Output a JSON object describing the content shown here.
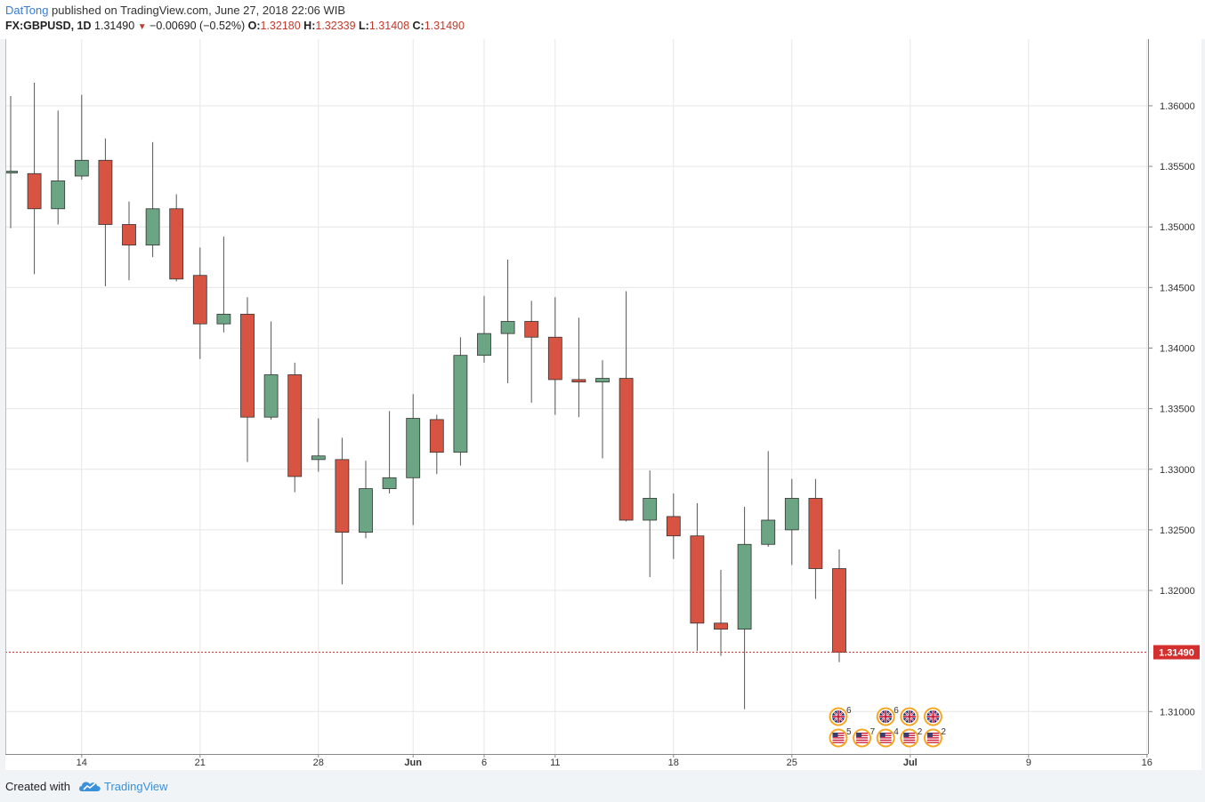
{
  "header": {
    "author": "DatTong",
    "published": " published on TradingView.com, June 27, 2018 22:06 WIB",
    "symbol": "FX:GBPUSD, 1D",
    "last": "1.31490",
    "change_arrow": "▼",
    "change": "−0.00690 (−0.52%)",
    "o_label": "O:",
    "o_value": "1.32180",
    "h_label": "H:",
    "h_value": "1.32339",
    "l_label": "L:",
    "l_value": "1.31408",
    "c_label": "C:",
    "c_value": "1.31490"
  },
  "footer": {
    "created_with": "Created with",
    "brand": "TradingView"
  },
  "colors": {
    "up": "#6ba583",
    "down": "#d75442",
    "wick": "#555555",
    "grid": "#e6e6e6",
    "price_line": "#d32f2f",
    "last_label_bg": "#d32f2f"
  },
  "chart_data": {
    "type": "candlestick",
    "symbol": "FX:GBPUSD",
    "interval": "1D",
    "ylim": [
      1.3065,
      1.3655
    ],
    "y_ticks": [
      "1.36000",
      "1.35500",
      "1.35000",
      "1.34500",
      "1.34000",
      "1.33500",
      "1.33000",
      "1.32500",
      "1.32000",
      "1.31000"
    ],
    "y_tick_values": [
      1.36,
      1.355,
      1.35,
      1.345,
      1.34,
      1.335,
      1.33,
      1.325,
      1.32,
      1.31
    ],
    "x_ticks": [
      {
        "label": "14",
        "bar": 3,
        "bold": false
      },
      {
        "label": "21",
        "bar": 8,
        "bold": false
      },
      {
        "label": "28",
        "bar": 13,
        "bold": false
      },
      {
        "label": "Jun",
        "bar": 17,
        "bold": true
      },
      {
        "label": "6",
        "bar": 20,
        "bold": false
      },
      {
        "label": "11",
        "bar": 23,
        "bold": false
      },
      {
        "label": "18",
        "bar": 28,
        "bold": false
      },
      {
        "label": "25",
        "bar": 33,
        "bold": false
      },
      {
        "label": "Jul",
        "bar": 38,
        "bold": true
      },
      {
        "label": "9",
        "bar": 43,
        "bold": false
      },
      {
        "label": "16",
        "bar": 48,
        "bold": false
      }
    ],
    "last_price": 1.3149,
    "last_price_label": "1.31490",
    "candles": [
      {
        "o": 1.3545,
        "h": 1.3608,
        "l": 1.3499,
        "c": 1.3546
      },
      {
        "o": 1.3544,
        "h": 1.3619,
        "l": 1.3461,
        "c": 1.3515
      },
      {
        "o": 1.3515,
        "h": 1.3596,
        "l": 1.3502,
        "c": 1.3538
      },
      {
        "o": 1.3542,
        "h": 1.3609,
        "l": 1.3539,
        "c": 1.3555
      },
      {
        "o": 1.3555,
        "h": 1.3573,
        "l": 1.3451,
        "c": 1.3502
      },
      {
        "o": 1.3502,
        "h": 1.3521,
        "l": 1.3456,
        "c": 1.3485
      },
      {
        "o": 1.3485,
        "h": 1.357,
        "l": 1.3475,
        "c": 1.3515
      },
      {
        "o": 1.3515,
        "h": 1.3527,
        "l": 1.3455,
        "c": 1.3457
      },
      {
        "o": 1.346,
        "h": 1.3483,
        "l": 1.3391,
        "c": 1.342
      },
      {
        "o": 1.342,
        "h": 1.3492,
        "l": 1.3413,
        "c": 1.3428
      },
      {
        "o": 1.3428,
        "h": 1.3442,
        "l": 1.3306,
        "c": 1.3343
      },
      {
        "o": 1.3343,
        "h": 1.3422,
        "l": 1.3341,
        "c": 1.3378
      },
      {
        "o": 1.3378,
        "h": 1.3388,
        "l": 1.3281,
        "c": 1.3294
      },
      {
        "o": 1.3308,
        "h": 1.3342,
        "l": 1.3298,
        "c": 1.3311
      },
      {
        "o": 1.3308,
        "h": 1.3326,
        "l": 1.3205,
        "c": 1.3248
      },
      {
        "o": 1.3248,
        "h": 1.3307,
        "l": 1.3243,
        "c": 1.3284
      },
      {
        "o": 1.3284,
        "h": 1.3348,
        "l": 1.328,
        "c": 1.3293
      },
      {
        "o": 1.3293,
        "h": 1.3362,
        "l": 1.3254,
        "c": 1.3342
      },
      {
        "o": 1.3341,
        "h": 1.3345,
        "l": 1.3296,
        "c": 1.3314
      },
      {
        "o": 1.3314,
        "h": 1.3409,
        "l": 1.3303,
        "c": 1.3394
      },
      {
        "o": 1.3394,
        "h": 1.3443,
        "l": 1.3388,
        "c": 1.3412
      },
      {
        "o": 1.3412,
        "h": 1.3473,
        "l": 1.3371,
        "c": 1.3422
      },
      {
        "o": 1.3422,
        "h": 1.3439,
        "l": 1.3355,
        "c": 1.3409
      },
      {
        "o": 1.3409,
        "h": 1.3442,
        "l": 1.3345,
        "c": 1.3374
      },
      {
        "o": 1.3374,
        "h": 1.3425,
        "l": 1.3343,
        "c": 1.3372
      },
      {
        "o": 1.3372,
        "h": 1.339,
        "l": 1.3309,
        "c": 1.3375
      },
      {
        "o": 1.3375,
        "h": 1.3447,
        "l": 1.3257,
        "c": 1.3258
      },
      {
        "o": 1.3258,
        "h": 1.3299,
        "l": 1.3211,
        "c": 1.3276
      },
      {
        "o": 1.3261,
        "h": 1.328,
        "l": 1.3226,
        "c": 1.3245
      },
      {
        "o": 1.3245,
        "h": 1.3272,
        "l": 1.315,
        "c": 1.3173
      },
      {
        "o": 1.3173,
        "h": 1.3217,
        "l": 1.3146,
        "c": 1.3168
      },
      {
        "o": 1.3168,
        "h": 1.3269,
        "l": 1.3102,
        "c": 1.3238
      },
      {
        "o": 1.3238,
        "h": 1.3315,
        "l": 1.3236,
        "c": 1.3258
      },
      {
        "o": 1.325,
        "h": 1.3292,
        "l": 1.3221,
        "c": 1.3276
      },
      {
        "o": 1.3276,
        "h": 1.3292,
        "l": 1.3193,
        "c": 1.3218
      },
      {
        "o": 1.3218,
        "h": 1.32339,
        "l": 1.31408,
        "c": 1.3149
      }
    ],
    "events": [
      {
        "bar": 35,
        "row": 0,
        "flag": "gb",
        "count": "6"
      },
      {
        "bar": 35,
        "row": 1,
        "flag": "us",
        "count": "5"
      },
      {
        "bar": 36,
        "row": 1,
        "flag": "us",
        "count": "7"
      },
      {
        "bar": 37,
        "row": 0,
        "flag": "gb",
        "count": "6"
      },
      {
        "bar": 37,
        "row": 1,
        "flag": "us",
        "count": "4"
      },
      {
        "bar": 38,
        "row": 0,
        "flag": "gb",
        "count": ""
      },
      {
        "bar": 38,
        "row": 1,
        "flag": "us",
        "count": "2"
      },
      {
        "bar": 39,
        "row": 0,
        "flag": "gb",
        "count": ""
      },
      {
        "bar": 39,
        "row": 1,
        "flag": "us",
        "count": "2"
      }
    ]
  }
}
